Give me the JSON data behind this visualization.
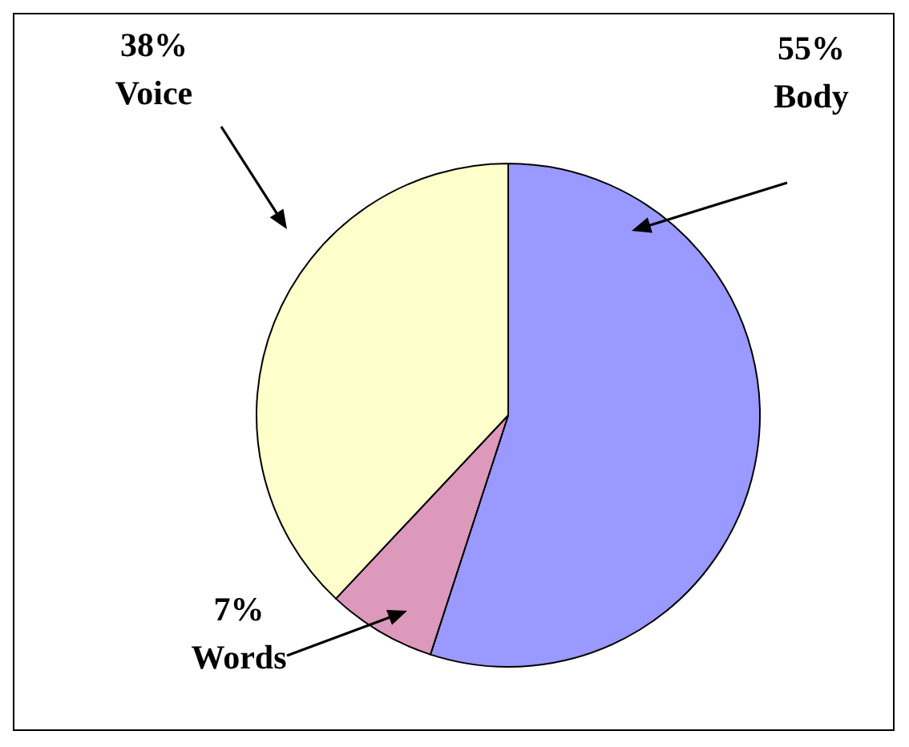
{
  "chart_data": {
    "type": "pie",
    "categories": [
      "Body",
      "Words",
      "Voice"
    ],
    "values": [
      55,
      7,
      38
    ],
    "value_labels": [
      "55%",
      "7%",
      "38%"
    ],
    "colors": [
      "#9999ff",
      "#dd99bb",
      "#ffffcc"
    ]
  }
}
